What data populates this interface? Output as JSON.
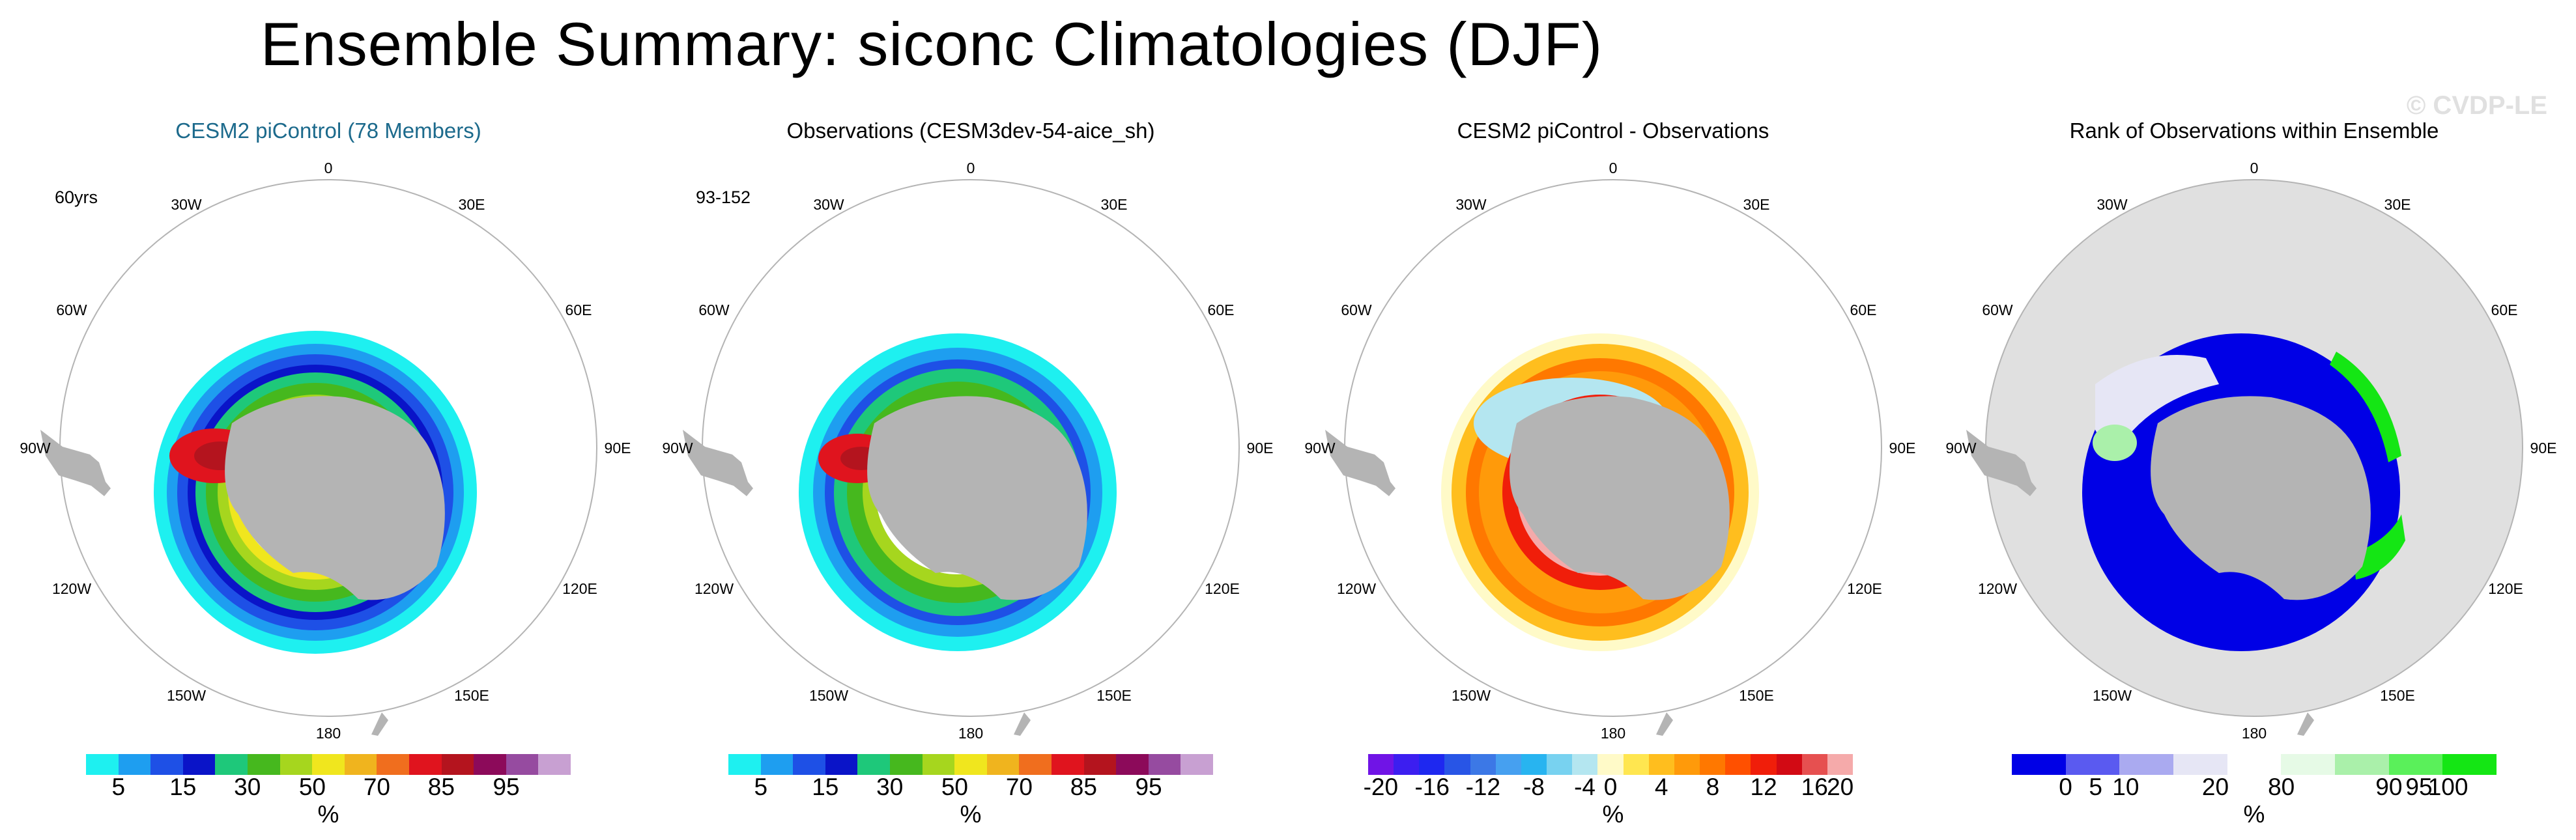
{
  "figure": {
    "title": "Ensemble Summary: siconc Climatologies (DJF)",
    "watermark": "© CVDP-LE"
  },
  "coord_labels": [
    "0",
    "30E",
    "60E",
    "90E",
    "120E",
    "150E",
    "180",
    "150W",
    "120W",
    "90W",
    "60W",
    "30W"
  ],
  "panels": [
    {
      "title": "CESM2 piControl (78 Members)",
      "sublabel": "60yrs",
      "colorbar": {
        "colors": [
          "#1ef0f0",
          "#1e9ef0",
          "#1e50e6",
          "#0a14c8",
          "#1ec87a",
          "#46b81e",
          "#a6d61e",
          "#f0e61e",
          "#f0b41e",
          "#f06e1e",
          "#e0141e",
          "#b4141e",
          "#8c0a5a",
          "#964ba0",
          "#c8a0d2"
        ],
        "tick_labels": [
          "5",
          "15",
          "30",
          "50",
          "70",
          "85",
          "95"
        ],
        "unit": "%"
      }
    },
    {
      "title": "Observations (CESM3dev-54-aice_sh)",
      "sublabel": "93-152",
      "colorbar": {
        "colors": [
          "#1ef0f0",
          "#1e9ef0",
          "#1e50e6",
          "#0a14c8",
          "#1ec87a",
          "#46b81e",
          "#a6d61e",
          "#f0e61e",
          "#f0b41e",
          "#f06e1e",
          "#e0141e",
          "#b4141e",
          "#8c0a5a",
          "#964ba0",
          "#c8a0d2"
        ],
        "tick_labels": [
          "5",
          "15",
          "30",
          "50",
          "70",
          "85",
          "95"
        ],
        "unit": "%"
      }
    },
    {
      "title": "CESM2 piControl - Observations",
      "sublabel": "",
      "colorbar": {
        "colors": [
          "#7014e6",
          "#3c1ef0",
          "#1e28f0",
          "#2855e6",
          "#3c78e6",
          "#46a0f0",
          "#28b4f0",
          "#78d2f0",
          "#b4e6f0",
          "#fffac8",
          "#ffe650",
          "#ffbe1e",
          "#ff9a0a",
          "#ff7800",
          "#ff5000",
          "#f01e0a",
          "#d20a14",
          "#e65050",
          "#f5aaaa"
        ],
        "tick_labels": [
          "-20",
          "-16",
          "-12",
          "-8",
          "-4",
          "0",
          "4",
          "8",
          "12",
          "16",
          "20"
        ],
        "unit": "%"
      }
    },
    {
      "title": "Rank of Observations within Ensemble",
      "sublabel": "",
      "colorbar": {
        "colors": [
          "#0000e6",
          "#5a5af0",
          "#aaaaf0",
          "#e6e6f5",
          "#ffffff",
          "#e6fae6",
          "#aaf0aa",
          "#5af05a",
          "#14e614"
        ],
        "tick_labels": [
          "0",
          "5",
          "10",
          "20",
          "80",
          "90",
          "95",
          "100"
        ],
        "unit": "%"
      }
    }
  ]
}
